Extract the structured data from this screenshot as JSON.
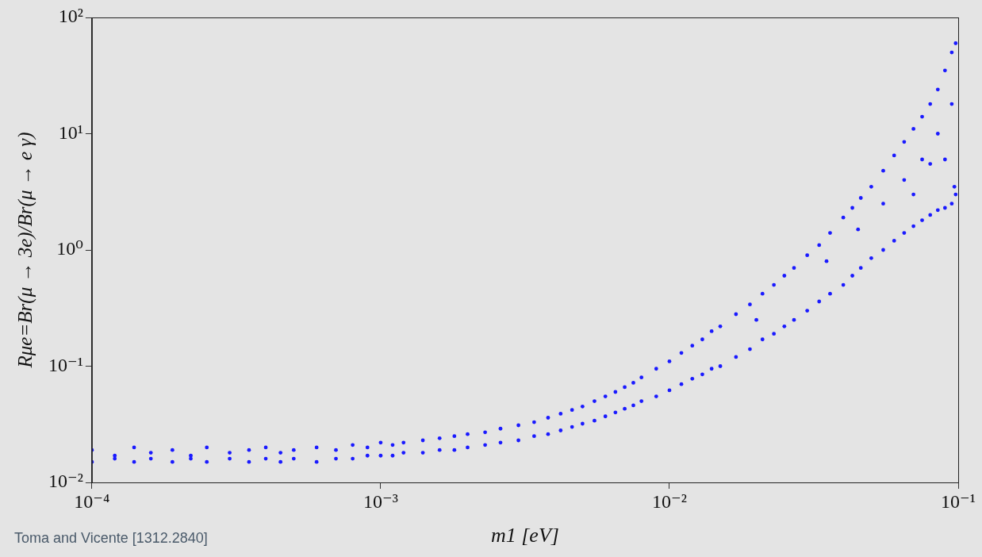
{
  "chart_data": {
    "type": "scatter",
    "xlabel": "m1 [eV]",
    "ylabel": "Rμe=Br(μ → 3e)/Br(μ → e γ)",
    "annotations": [
      {
        "text": "Toma and Vicente [1312.2840]"
      }
    ],
    "color": "#1a1aff",
    "marker": "circle",
    "log": true,
    "grid": false,
    "xlim": [
      0.0001,
      0.1
    ],
    "ylim": [
      0.01,
      100
    ],
    "xticks": [
      {
        "value": 0.0001,
        "label": "10⁻⁴"
      },
      {
        "value": 0.001,
        "label": "10⁻³"
      },
      {
        "value": 0.01,
        "label": "10⁻²"
      },
      {
        "value": 0.1,
        "label": "10⁻¹"
      }
    ],
    "yticks": [
      {
        "value": 0.01,
        "label": "10⁻²"
      },
      {
        "value": 0.1,
        "label": "10⁻¹"
      },
      {
        "value": 1,
        "label": "10⁰"
      },
      {
        "value": 10,
        "label": "10¹"
      },
      {
        "value": 100,
        "label": "10²"
      }
    ],
    "x": [
      0.0001,
      0.0001,
      0.00012,
      0.00012,
      0.00014,
      0.00014,
      0.00016,
      0.00016,
      0.00019,
      0.00019,
      0.00022,
      0.00022,
      0.00025,
      0.00025,
      0.0003,
      0.0003,
      0.00035,
      0.00035,
      0.0004,
      0.0004,
      0.00045,
      0.00045,
      0.0005,
      0.0005,
      0.0006,
      0.0006,
      0.0007,
      0.0007,
      0.0008,
      0.0008,
      0.0009,
      0.0009,
      0.001,
      0.001,
      0.0011,
      0.0011,
      0.0012,
      0.0012,
      0.0014,
      0.0014,
      0.0016,
      0.0016,
      0.0018,
      0.0018,
      0.002,
      0.002,
      0.0023,
      0.0023,
      0.0026,
      0.0026,
      0.003,
      0.003,
      0.0034,
      0.0034,
      0.0038,
      0.0038,
      0.0042,
      0.0042,
      0.0046,
      0.0046,
      0.005,
      0.005,
      0.0055,
      0.0055,
      0.006,
      0.006,
      0.0065,
      0.0065,
      0.007,
      0.007,
      0.0075,
      0.0075,
      0.008,
      0.008,
      0.009,
      0.009,
      0.01,
      0.01,
      0.011,
      0.011,
      0.012,
      0.012,
      0.013,
      0.013,
      0.014,
      0.014,
      0.015,
      0.015,
      0.017,
      0.017,
      0.019,
      0.019,
      0.021,
      0.021,
      0.023,
      0.023,
      0.025,
      0.025,
      0.027,
      0.027,
      0.03,
      0.03,
      0.033,
      0.033,
      0.036,
      0.036,
      0.04,
      0.04,
      0.043,
      0.043,
      0.046,
      0.046,
      0.05,
      0.05,
      0.055,
      0.055,
      0.06,
      0.06,
      0.065,
      0.065,
      0.07,
      0.07,
      0.075,
      0.075,
      0.08,
      0.08,
      0.085,
      0.085,
      0.09,
      0.09,
      0.095,
      0.095,
      0.098,
      0.098,
      0.02,
      0.035,
      0.045,
      0.055,
      0.065,
      0.075,
      0.085,
      0.095,
      0.09,
      0.097,
      0.08,
      0.07
    ],
    "values": [
      0.019,
      0.015,
      0.017,
      0.016,
      0.02,
      0.015,
      0.018,
      0.016,
      0.019,
      0.015,
      0.017,
      0.016,
      0.02,
      0.015,
      0.018,
      0.016,
      0.019,
      0.015,
      0.02,
      0.016,
      0.018,
      0.015,
      0.019,
      0.016,
      0.02,
      0.015,
      0.019,
      0.016,
      0.021,
      0.016,
      0.02,
      0.017,
      0.022,
      0.017,
      0.021,
      0.017,
      0.022,
      0.018,
      0.023,
      0.018,
      0.024,
      0.019,
      0.025,
      0.019,
      0.026,
      0.02,
      0.027,
      0.021,
      0.029,
      0.022,
      0.031,
      0.023,
      0.033,
      0.025,
      0.036,
      0.026,
      0.039,
      0.028,
      0.042,
      0.03,
      0.045,
      0.032,
      0.05,
      0.034,
      0.055,
      0.037,
      0.06,
      0.04,
      0.066,
      0.043,
      0.072,
      0.046,
      0.08,
      0.05,
      0.095,
      0.055,
      0.11,
      0.062,
      0.13,
      0.07,
      0.15,
      0.078,
      0.17,
      0.085,
      0.2,
      0.095,
      0.22,
      0.1,
      0.28,
      0.12,
      0.34,
      0.14,
      0.42,
      0.17,
      0.5,
      0.19,
      0.6,
      0.22,
      0.7,
      0.25,
      0.9,
      0.3,
      1.1,
      0.36,
      1.4,
      0.42,
      1.9,
      0.5,
      2.3,
      0.6,
      2.8,
      0.7,
      3.5,
      0.85,
      4.8,
      1.0,
      6.5,
      1.2,
      8.5,
      1.4,
      11,
      1.6,
      14,
      1.8,
      18,
      2.0,
      24,
      2.2,
      35,
      2.3,
      50,
      2.5,
      60,
      3.0,
      0.25,
      0.8,
      1.5,
      2.5,
      4,
      6,
      10,
      18,
      6,
      3.5,
      5.5,
      3
    ]
  }
}
